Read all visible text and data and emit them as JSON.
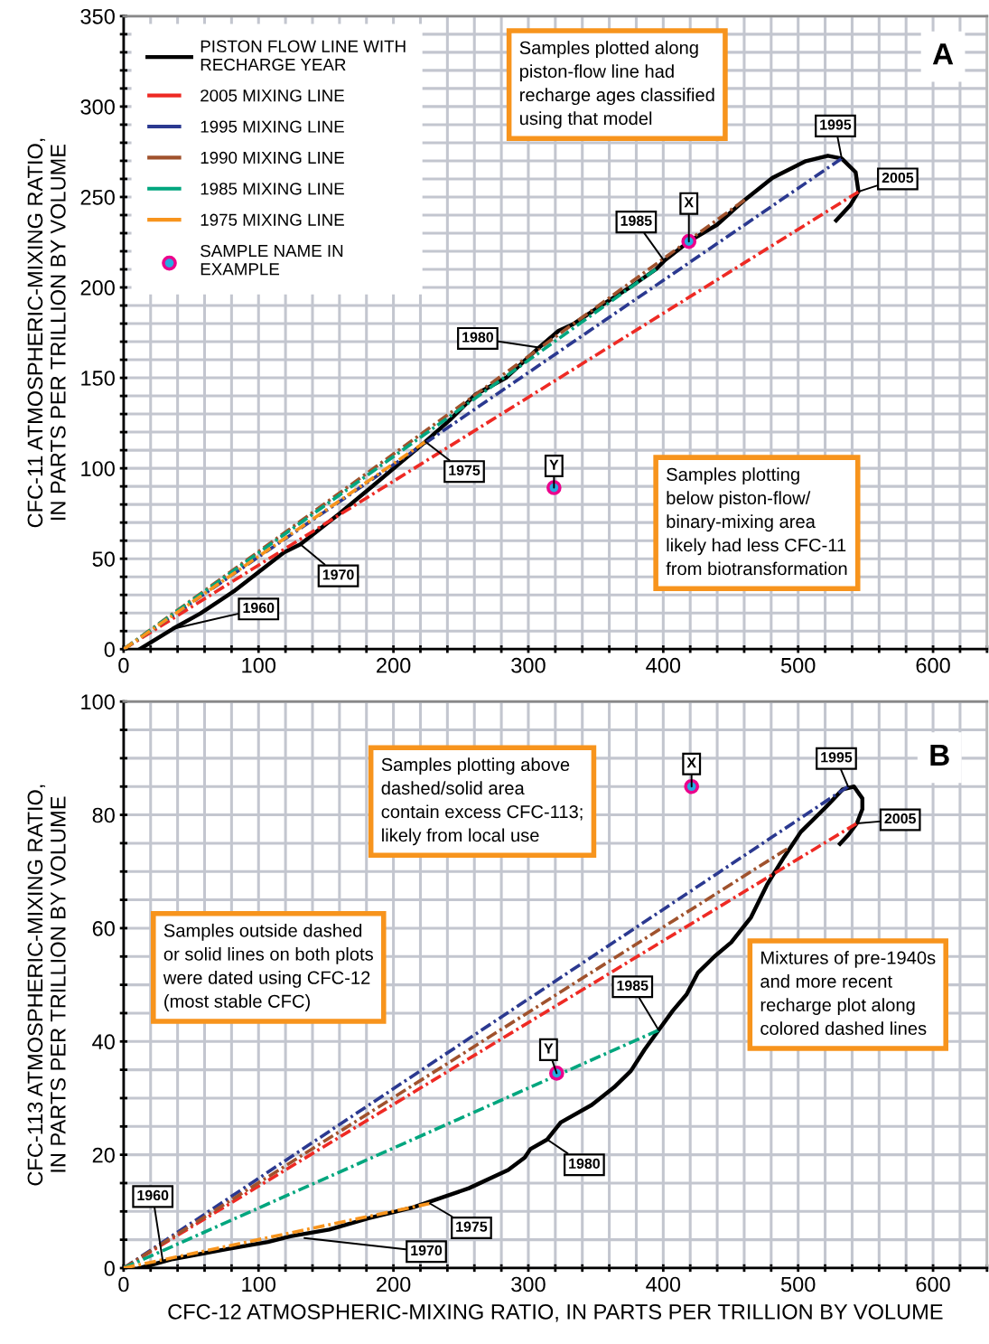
{
  "chart_data": [
    {
      "type": "line",
      "ylabel": "CFC-11 ATMOSPHERIC-MIXING RATIO,\nIN PARTS PER TRILLION BY VOLUME",
      "xlim": [
        0,
        640
      ],
      "ylim": [
        0,
        350
      ],
      "xticks": [
        0,
        {
          "value": 20,
          "label": null
        },
        {
          "value": 40,
          "label": null
        },
        {
          "value": 60,
          "label": null
        },
        {
          "value": 80,
          "label": null
        },
        100,
        {
          "value": 120,
          "label": null
        },
        {
          "value": 140,
          "label": null
        },
        {
          "value": 160,
          "label": null
        },
        {
          "value": 180,
          "label": null
        },
        200,
        {
          "value": 220,
          "label": null
        },
        {
          "value": 240,
          "label": null
        },
        {
          "value": 260,
          "label": null
        },
        {
          "value": 280,
          "label": null
        },
        300,
        {
          "value": 320,
          "label": null
        },
        {
          "value": 340,
          "label": null
        },
        {
          "value": 360,
          "label": null
        },
        {
          "value": 380,
          "label": null
        },
        400,
        {
          "value": 420,
          "label": null
        },
        {
          "value": 440,
          "label": null
        },
        {
          "value": 460,
          "label": null
        },
        {
          "value": 480,
          "label": null
        },
        500,
        {
          "value": 520,
          "label": null
        },
        {
          "value": 540,
          "label": null
        },
        {
          "value": 560,
          "label": null
        },
        {
          "value": 580,
          "label": null
        },
        600,
        {
          "value": 620,
          "label": null
        },
        {
          "value": 640,
          "label": null
        }
      ],
      "yticks": [
        0,
        {
          "value": 10,
          "label": null
        },
        {
          "value": 20,
          "label": null
        },
        {
          "value": 30,
          "label": null
        },
        {
          "value": 40,
          "label": null
        },
        50,
        {
          "value": 60,
          "label": null
        },
        {
          "value": 70,
          "label": null
        },
        {
          "value": 80,
          "label": null
        },
        {
          "value": 90,
          "label": null
        },
        100,
        {
          "value": 110,
          "label": null
        },
        {
          "value": 120,
          "label": null
        },
        {
          "value": 130,
          "label": null
        },
        {
          "value": 140,
          "label": null
        },
        150,
        {
          "value": 160,
          "label": null
        },
        {
          "value": 170,
          "label": null
        },
        {
          "value": 180,
          "label": null
        },
        {
          "value": 190,
          "label": null
        },
        200,
        {
          "value": 210,
          "label": null
        },
        {
          "value": 220,
          "label": null
        },
        {
          "value": 230,
          "label": null
        },
        {
          "value": 240,
          "label": null
        },
        250,
        {
          "value": 260,
          "label": null
        },
        {
          "value": 270,
          "label": null
        },
        {
          "value": 280,
          "label": null
        },
        {
          "value": 290,
          "label": null
        },
        300,
        {
          "value": 310,
          "label": null
        },
        {
          "value": 320,
          "label": null
        },
        {
          "value": 330,
          "label": null
        },
        {
          "value": 340,
          "label": null
        },
        350
      ],
      "grid": true,
      "legend": "top left",
      "series": [
        {
          "name": "PISTON FLOW LINE WITH\nRECHARGE YEAR",
          "color": "#000000",
          "line_style": "solid",
          "x": [
            12,
            36.4,
            57,
            81.7,
            118.8,
            131,
            160,
            184.6,
            223.7,
            242.2,
            260.8,
            283.4,
            308,
            322.4,
            332.7,
            357.5,
            374,
            394.5,
            400.7,
            419,
            439.8,
            460.4,
            481,
            505.6,
            522,
            532.3,
            542.6,
            544.7,
            538.5,
            528.2
          ],
          "values": [
            0,
            11.2,
            19.8,
            32,
            53.5,
            58,
            75,
            90.2,
            114.7,
            127,
            140.8,
            150,
            166.8,
            176,
            179.5,
            191.7,
            199.4,
            210,
            214.7,
            225.4,
            234.6,
            248.4,
            260.6,
            269.8,
            272.8,
            271.3,
            263.7,
            253,
            245.3,
            237
          ]
        },
        {
          "name": "2005 MIXING LINE",
          "color": "#ee2a24",
          "line_style": "dashed",
          "x": [
            0,
            545
          ],
          "values": [
            0,
            253
          ]
        },
        {
          "name": "1995 MIXING LINE",
          "color": "#2b3990",
          "line_style": "dashed",
          "x": [
            0,
            532.3
          ],
          "values": [
            0,
            271.3
          ]
        },
        {
          "name": "1990 MIXING LINE",
          "color": "#a0522d",
          "line_style": "dashed",
          "x": [
            0,
            460.4
          ],
          "values": [
            0,
            248.4
          ]
        },
        {
          "name": "1985 MIXING LINE",
          "color": "#00a67e",
          "line_style": "dashed",
          "x": [
            0,
            394.5
          ],
          "values": [
            0,
            210
          ]
        },
        {
          "name": "1975 MIXING LINE",
          "color": "#f7941d",
          "line_style": "dashed",
          "x": [
            0,
            223.7
          ],
          "values": [
            0,
            114.7
          ]
        },
        {
          "name": "SAMPLE NAME IN\nEXAMPLE",
          "type": "scatter",
          "marker": "circle",
          "color": "#27aae1",
          "x": [
            419,
            319
          ],
          "values": [
            225.4,
            89.3
          ]
        }
      ],
      "annotations": [
        {
          "text": "1960",
          "x": 36.4,
          "y": 11.2
        },
        {
          "text": "1970",
          "x": 131,
          "y": 58
        },
        {
          "text": "1975",
          "x": 223.7,
          "y": 114.7
        },
        {
          "text": "1980",
          "x": 308,
          "y": 166.8
        },
        {
          "text": "1985",
          "x": 400.7,
          "y": 214.7
        },
        {
          "text": "1995",
          "x": 532.3,
          "y": 271.3
        },
        {
          "text": "2005",
          "x": 545,
          "y": 253
        },
        {
          "text": "X",
          "x": 419,
          "y": 225.4
        },
        {
          "text": "Y",
          "x": 319,
          "y": 89.3
        },
        "Samples plotted along\npiston-flow line had\nrecharge ages classified\nusing that model",
        "Samples plotting\nbelow piston-flow/\nbinary-mixing area\nlikely had less CFC-11\nfrom biotransformation",
        "A"
      ]
    },
    {
      "type": "line",
      "xlabel": "CFC-12 ATMOSPHERIC-MIXING RATIO, IN PARTS PER TRILLION BY VOLUME",
      "ylabel": "CFC-113 ATMOSPHERIC-MIXING RATIO,\nIN PARTS PER TRILLION BY VOLUME",
      "xlim": [
        0,
        640
      ],
      "ylim": [
        0,
        100
      ],
      "xticks": [
        0,
        {
          "value": 20,
          "label": null
        },
        {
          "value": 40,
          "label": null
        },
        {
          "value": 60,
          "label": null
        },
        {
          "value": 80,
          "label": null
        },
        100,
        {
          "value": 120,
          "label": null
        },
        {
          "value": 140,
          "label": null
        },
        {
          "value": 160,
          "label": null
        },
        {
          "value": 180,
          "label": null
        },
        200,
        {
          "value": 220,
          "label": null
        },
        {
          "value": 240,
          "label": null
        },
        {
          "value": 260,
          "label": null
        },
        {
          "value": 280,
          "label": null
        },
        300,
        {
          "value": 320,
          "label": null
        },
        {
          "value": 340,
          "label": null
        },
        {
          "value": 360,
          "label": null
        },
        {
          "value": 380,
          "label": null
        },
        400,
        {
          "value": 420,
          "label": null
        },
        {
          "value": 440,
          "label": null
        },
        {
          "value": 460,
          "label": null
        },
        {
          "value": 480,
          "label": null
        },
        500,
        {
          "value": 520,
          "label": null
        },
        {
          "value": 540,
          "label": null
        },
        {
          "value": 560,
          "label": null
        },
        {
          "value": 580,
          "label": null
        },
        600,
        {
          "value": 620,
          "label": null
        },
        {
          "value": 640,
          "label": null
        }
      ],
      "yticks": [
        0,
        {
          "value": 5,
          "label": null
        },
        {
          "value": 10,
          "label": null
        },
        {
          "value": 15,
          "label": null
        },
        20,
        {
          "value": 25,
          "label": null
        },
        {
          "value": 30,
          "label": null
        },
        {
          "value": 35,
          "label": null
        },
        40,
        {
          "value": 45,
          "label": null
        },
        {
          "value": 50,
          "label": null
        },
        {
          "value": 55,
          "label": null
        },
        60,
        {
          "value": 65,
          "label": null
        },
        {
          "value": 70,
          "label": null
        },
        {
          "value": 75,
          "label": null
        },
        80,
        {
          "value": 85,
          "label": null
        },
        {
          "value": 90,
          "label": null
        },
        {
          "value": 95,
          "label": null
        },
        100
      ],
      "grid": true,
      "series": [
        {
          "color": "#000000",
          "line_style": "solid",
          "x": [
            12,
            36.6,
            78,
            107,
            123.5,
            152.5,
            181.5,
            214.5,
            256,
            285,
            297.3,
            301.5,
            314,
            324,
            347,
            363.5,
            376,
            386.3,
            396.6,
            407,
            417.3,
            425.6,
            438,
            450.4,
            465,
            477,
            489.7,
            502,
            520.7,
            533,
            541.4,
            547.6,
            547.6,
            543.5,
            537.3,
            531
          ],
          "values": [
            0,
            1.6,
            3.4,
            4.6,
            5.6,
            6.8,
            8.8,
            10.7,
            14.1,
            17.3,
            19.5,
            21,
            22.7,
            25.7,
            28.8,
            31.9,
            34.8,
            38.6,
            42,
            45.4,
            48.3,
            52.1,
            55,
            57.5,
            61.9,
            67.7,
            72.6,
            77,
            81.4,
            84.5,
            85,
            82.9,
            81,
            78.5,
            76.5,
            74.9
          ]
        },
        {
          "color": "#ee2a24",
          "line_style": "dashed",
          "x": [
            0,
            543.5
          ],
          "values": [
            0,
            78.5
          ]
        },
        {
          "color": "#2b3990",
          "line_style": "dashed",
          "x": [
            0,
            537
          ],
          "values": [
            0,
            85
          ]
        },
        {
          "color": "#a0522d",
          "line_style": "dashed",
          "x": [
            0,
            491.8
          ],
          "values": [
            0,
            74
          ]
        },
        {
          "color": "#00a67e",
          "line_style": "dashed",
          "x": [
            0,
            396.6
          ],
          "values": [
            0,
            42
          ]
        },
        {
          "color": "#f7941d",
          "line_style": "dashed",
          "x": [
            0,
            227
          ],
          "values": [
            0,
            11.4
          ]
        },
        {
          "type": "scatter",
          "marker": "circle",
          "color": "#27aae1",
          "x": [
            421,
            321
          ],
          "values": [
            85,
            34.4
          ]
        }
      ],
      "annotations": [
        {
          "text": "1960",
          "x": 29,
          "y": 1.3
        },
        {
          "text": "1970",
          "x": 134,
          "y": 5.3
        },
        {
          "text": "1975",
          "x": 227,
          "y": 11.4
        },
        {
          "text": "1980",
          "x": 314,
          "y": 22.7
        },
        {
          "text": "1985",
          "x": 396.6,
          "y": 42
        },
        {
          "text": "1995",
          "x": 537,
          "y": 85
        },
        {
          "text": "2005",
          "x": 543.5,
          "y": 78.5
        },
        {
          "text": "X",
          "x": 421,
          "y": 85
        },
        {
          "text": "Y",
          "x": 321,
          "y": 34.4
        },
        "Samples plotting above\ndashed/solid area\ncontain excess CFC-113;\nlikely from local use",
        "Samples outside dashed\nor solid lines on both plots\nwere dated using CFC-12\n(most stable CFC)",
        "Mixtures of pre-1940s\nand more recent\nrecharge plot along\ncolored dashed lines",
        "B"
      ]
    }
  ]
}
